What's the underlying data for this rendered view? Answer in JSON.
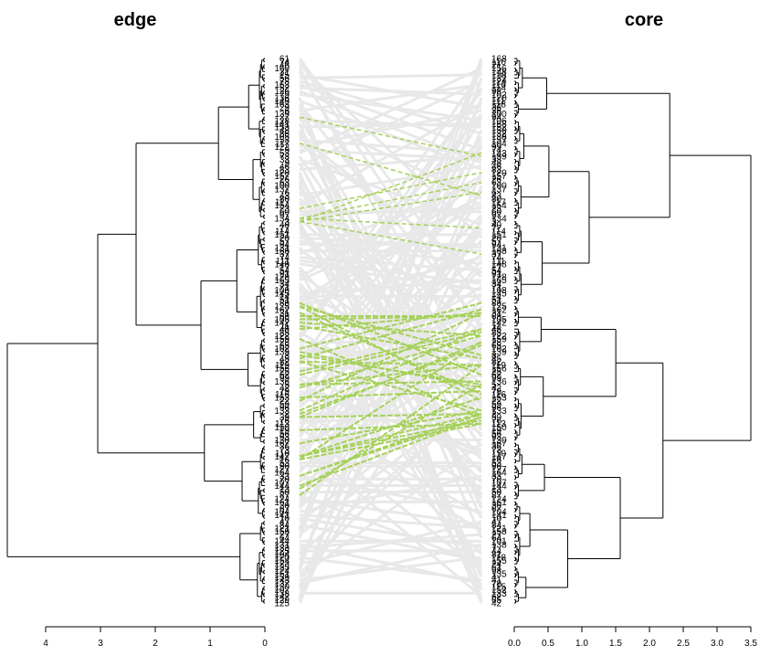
{
  "chart_data": {
    "type": "tanglegram",
    "left": {
      "title": "edge",
      "axis_ticks": [
        4,
        3,
        2,
        1,
        0
      ],
      "xlim": [
        4.7,
        0
      ],
      "labels_top": [
        "61",
        "74",
        "46",
        "160",
        "31",
        "15",
        "56",
        "78",
        "163",
        "52",
        "126",
        "79",
        "136",
        "149",
        "163",
        "29",
        "6",
        "139",
        "27",
        "128",
        "141",
        "153",
        "48",
        "86",
        "105",
        "53",
        "117",
        "122",
        "9",
        "53",
        "73",
        "33"
      ],
      "labels_bottom": [
        "144",
        "131",
        "133",
        "125",
        "104",
        "120",
        "154",
        "123",
        "135",
        "124",
        "151",
        "159",
        "143",
        "137",
        "130",
        "107",
        "138",
        "147",
        "129",
        "125"
      ]
    },
    "right": {
      "title": "core",
      "axis_ticks": [
        0.0,
        0.5,
        1.0,
        1.5,
        2.0,
        2.5,
        3.0,
        3.5
      ],
      "xlim": [
        0,
        3.6
      ],
      "labels_top": [
        "168",
        "116",
        "21",
        "156",
        "148",
        "110",
        "132",
        "124",
        "116",
        "114",
        "98",
        "102",
        "120",
        "111",
        "118",
        "36",
        "36",
        "100",
        "94",
        "106",
        "168",
        "152",
        "150",
        "132",
        "138",
        "157",
        "104",
        "99",
        "74",
        "143",
        "159",
        "33",
        "48"
      ],
      "labels_bottom": [
        "133",
        "62",
        "65",
        "42"
      ]
    },
    "n_leaves": 168,
    "colors": {
      "unchanged": "#a6d15a",
      "changed": "#e8e8e8"
    }
  }
}
